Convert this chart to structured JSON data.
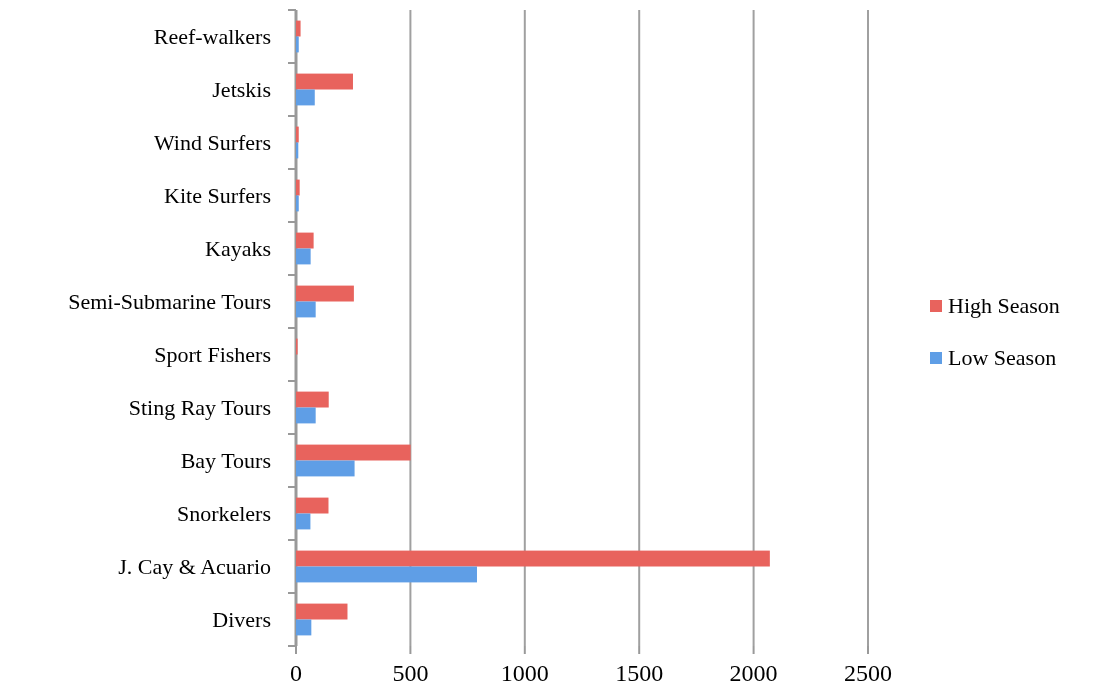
{
  "chart_data": {
    "type": "bar",
    "orientation": "horizontal",
    "categories": [
      "Reef-walkers",
      "Jetskis",
      "Wind Surfers",
      "Kite Surfers",
      "Kayaks",
      "Semi-Submarine Tours",
      "Sport Fishers",
      "Sting Ray Tours",
      "Bay Tours",
      "Snorkelers",
      "J. Cay & Acuario",
      "Divers"
    ],
    "series": [
      {
        "name": "High Season",
        "color": "#e8635d",
        "values": [
          20,
          249,
          12,
          16,
          77,
          253,
          7,
          143,
          501,
          142,
          2071,
          225
        ]
      },
      {
        "name": "Low Season",
        "color": "#5f9ee6",
        "values": [
          12,
          82,
          10,
          12,
          64,
          86,
          0,
          86,
          256,
          63,
          791,
          67
        ]
      }
    ],
    "xlim": [
      0,
      2500
    ],
    "xticks": [
      0,
      500,
      1000,
      1500,
      2000,
      2500
    ],
    "grid": "x",
    "legend": "right"
  }
}
